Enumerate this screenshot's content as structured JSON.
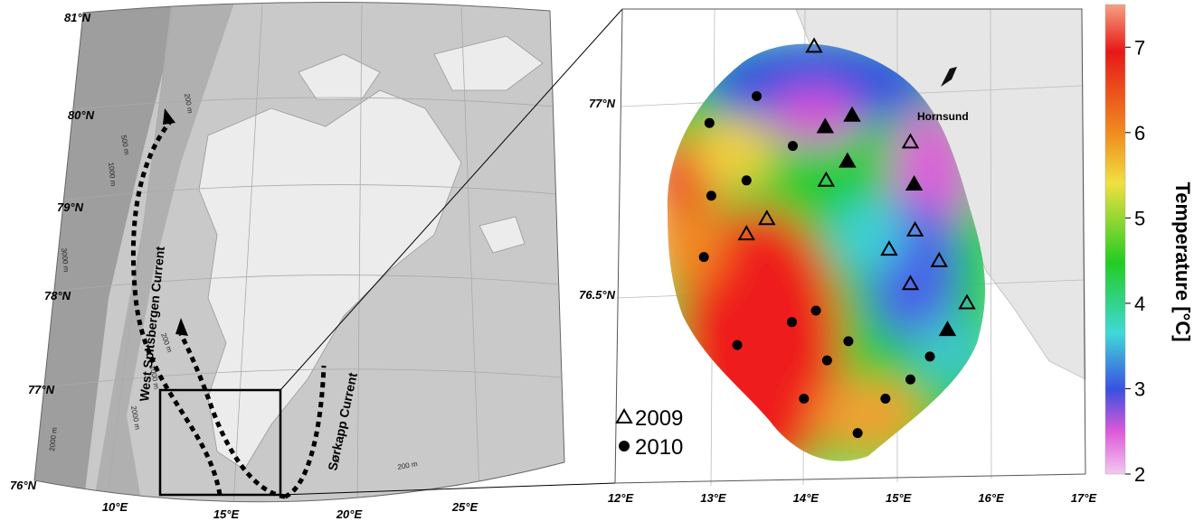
{
  "overview_map": {
    "lat_labels": [
      "81°N",
      "80°N",
      "79°N",
      "78°N",
      "77°N",
      "76°N"
    ],
    "lon_labels": [
      "10°E",
      "15°E",
      "20°E",
      "25°E"
    ],
    "currents": [
      "West Spitsbergen Current",
      "Sørkapp Current"
    ],
    "depth_labels": [
      "200 m",
      "500 m",
      "1000 m",
      "3000 m",
      "200 m",
      "1000 m",
      "2000 m",
      "2000 m",
      "200 m"
    ]
  },
  "detail_map": {
    "lat_labels": [
      {
        "value": 77,
        "label": "77°N"
      },
      {
        "value": 76.5,
        "label": "76.5°N"
      }
    ],
    "lon_labels": [
      {
        "value": 12,
        "label": "12°E"
      },
      {
        "value": 13,
        "label": "13°E"
      },
      {
        "value": 14,
        "label": "14°E"
      },
      {
        "value": 15,
        "label": "15°E"
      },
      {
        "value": 16,
        "label": "16°E"
      },
      {
        "value": 17,
        "label": "17°E"
      }
    ],
    "place": "Hornsund",
    "series": [
      {
        "name": "2009",
        "marker": "triangle",
        "stations": [
          {
            "lon": 14.09,
            "lat": 77.15,
            "filled": false
          },
          {
            "lon": 15.13,
            "lat": 76.9,
            "filled": false
          },
          {
            "lon": 14.22,
            "lat": 76.8,
            "filled": false
          },
          {
            "lon": 13.58,
            "lat": 76.7,
            "filled": false
          },
          {
            "lon": 13.36,
            "lat": 76.66,
            "filled": false
          },
          {
            "lon": 15.18,
            "lat": 76.67,
            "filled": false
          },
          {
            "lon": 14.9,
            "lat": 76.62,
            "filled": false
          },
          {
            "lon": 15.44,
            "lat": 76.59,
            "filled": false
          },
          {
            "lon": 15.13,
            "lat": 76.53,
            "filled": false
          },
          {
            "lon": 15.74,
            "lat": 76.48,
            "filled": false
          },
          {
            "lon": 14.21,
            "lat": 76.94,
            "filled": true
          },
          {
            "lon": 14.5,
            "lat": 76.97,
            "filled": true
          },
          {
            "lon": 14.45,
            "lat": 76.85,
            "filled": true
          },
          {
            "lon": 15.17,
            "lat": 76.79,
            "filled": true
          },
          {
            "lon": 15.53,
            "lat": 76.41,
            "filled": true
          }
        ]
      },
      {
        "name": "2010",
        "marker": "circle",
        "stations": [
          {
            "lon": 13.47,
            "lat": 77.02
          },
          {
            "lon": 12.96,
            "lat": 76.95
          },
          {
            "lon": 13.86,
            "lat": 76.89
          },
          {
            "lon": 13.36,
            "lat": 76.8
          },
          {
            "lon": 12.98,
            "lat": 76.76
          },
          {
            "lon": 12.9,
            "lat": 76.6
          },
          {
            "lon": 14.11,
            "lat": 76.46
          },
          {
            "lon": 13.85,
            "lat": 76.43
          },
          {
            "lon": 13.26,
            "lat": 76.37
          },
          {
            "lon": 14.46,
            "lat": 76.38
          },
          {
            "lon": 14.23,
            "lat": 76.33
          },
          {
            "lon": 15.34,
            "lat": 76.34
          },
          {
            "lon": 15.13,
            "lat": 76.28
          },
          {
            "lon": 13.98,
            "lat": 76.23
          },
          {
            "lon": 14.86,
            "lat": 76.23
          },
          {
            "lon": 14.56,
            "lat": 76.14
          }
        ]
      }
    ]
  },
  "colorbar": {
    "label": "Temperature [°C]",
    "lim": [
      2,
      7.5
    ],
    "ticks": [
      2,
      3,
      4,
      5,
      6,
      7
    ]
  }
}
